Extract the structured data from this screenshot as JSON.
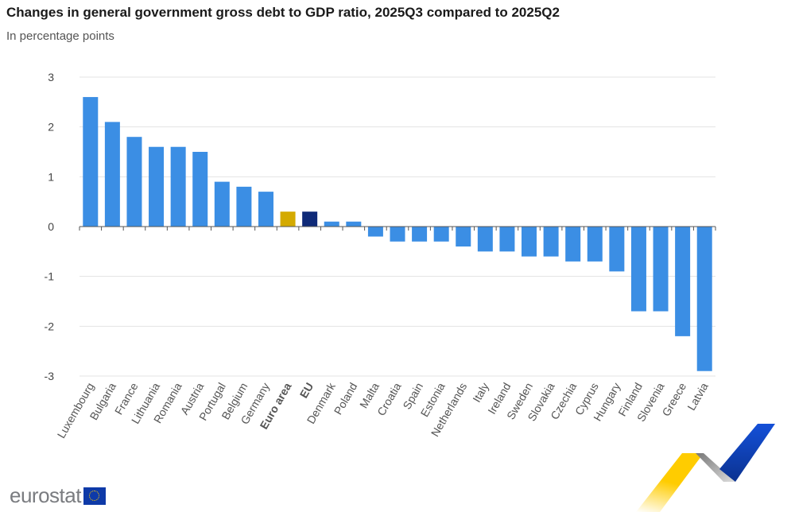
{
  "chart_data": {
    "type": "bar",
    "title": "Changes in general government gross debt to GDP ratio, 2025Q3 compared to 2025Q2",
    "subtitle": "In percentage points",
    "xlabel": "",
    "ylabel": "",
    "ylim": [
      -3,
      3
    ],
    "yticks": [
      3,
      2,
      1,
      0,
      -1,
      -2,
      -3
    ],
    "grid": true,
    "categories": [
      "Luxembourg",
      "Bulgaria",
      "France",
      "Lithuania",
      "Romania",
      "Austria",
      "Portugal",
      "Belgium",
      "Germany",
      "Euro area",
      "EU",
      "Denmark",
      "Poland",
      "Malta",
      "Croatia",
      "Spain",
      "Estonia",
      "Netherlands",
      "Italy",
      "Ireland",
      "Sweden",
      "Slovakia",
      "Czechia",
      "Cyprus",
      "Hungary",
      "Finland",
      "Slovenia",
      "Greece",
      "Latvia"
    ],
    "values": [
      2.6,
      2.1,
      1.8,
      1.6,
      1.6,
      1.5,
      0.9,
      0.8,
      0.7,
      0.3,
      0.3,
      0.1,
      0.1,
      -0.2,
      -0.3,
      -0.3,
      -0.3,
      -0.4,
      -0.5,
      -0.5,
      -0.6,
      -0.6,
      -0.7,
      -0.7,
      -0.9,
      -1.7,
      -1.7,
      -2.2,
      -2.9
    ],
    "highlighted": {
      "Euro area": "#d4aa00",
      "EU": "#0f2a78"
    },
    "bold_categories": [
      "Euro area",
      "EU"
    ],
    "colors": {
      "default": "#3b8ee4"
    }
  },
  "footer": {
    "logo": "eurostat"
  }
}
